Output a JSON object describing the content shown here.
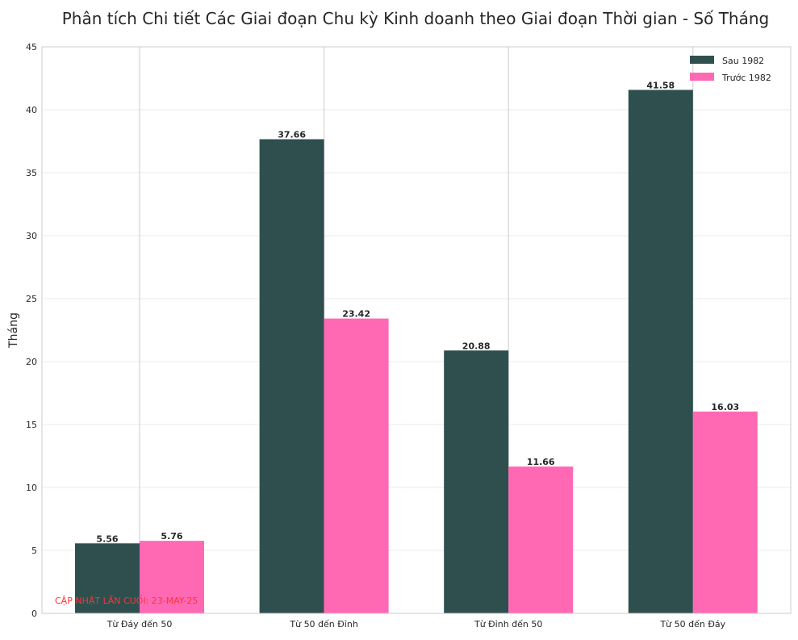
{
  "colors": {
    "series_0": "#2f4f4f",
    "series_1": "#ff69b4",
    "note": "#ff3333"
  },
  "chart_data": {
    "type": "bar",
    "title": "Phân tích Chi tiết Các Giai đoạn Chu kỳ Kinh doanh theo Giai đoạn Thời gian - Số Tháng",
    "xlabel": "",
    "ylabel": "Tháng",
    "categories": [
      "Từ Đáy đến 50",
      "Từ 50 đến Đỉnh",
      "Từ Đỉnh đến 50",
      "Từ 50 đến Đáy"
    ],
    "series": [
      {
        "name": "Sau 1982",
        "values": [
          5.56,
          37.66,
          20.88,
          41.58
        ],
        "labels": [
          "5.56",
          "37.66",
          "20.88",
          "41.58"
        ]
      },
      {
        "name": "Trước 1982",
        "values": [
          5.76,
          23.42,
          11.66,
          16.03
        ],
        "labels": [
          "5.76",
          "23.42",
          "11.66",
          "16.03"
        ]
      }
    ],
    "ylim": [
      0,
      45
    ],
    "yticks": [
      0,
      5,
      10,
      15,
      20,
      25,
      30,
      35,
      40,
      45
    ],
    "grid": true,
    "legend_position": "top-right",
    "annotation": "CẬP NHẬT LẦN CUỐI: 23-MAY-25"
  }
}
